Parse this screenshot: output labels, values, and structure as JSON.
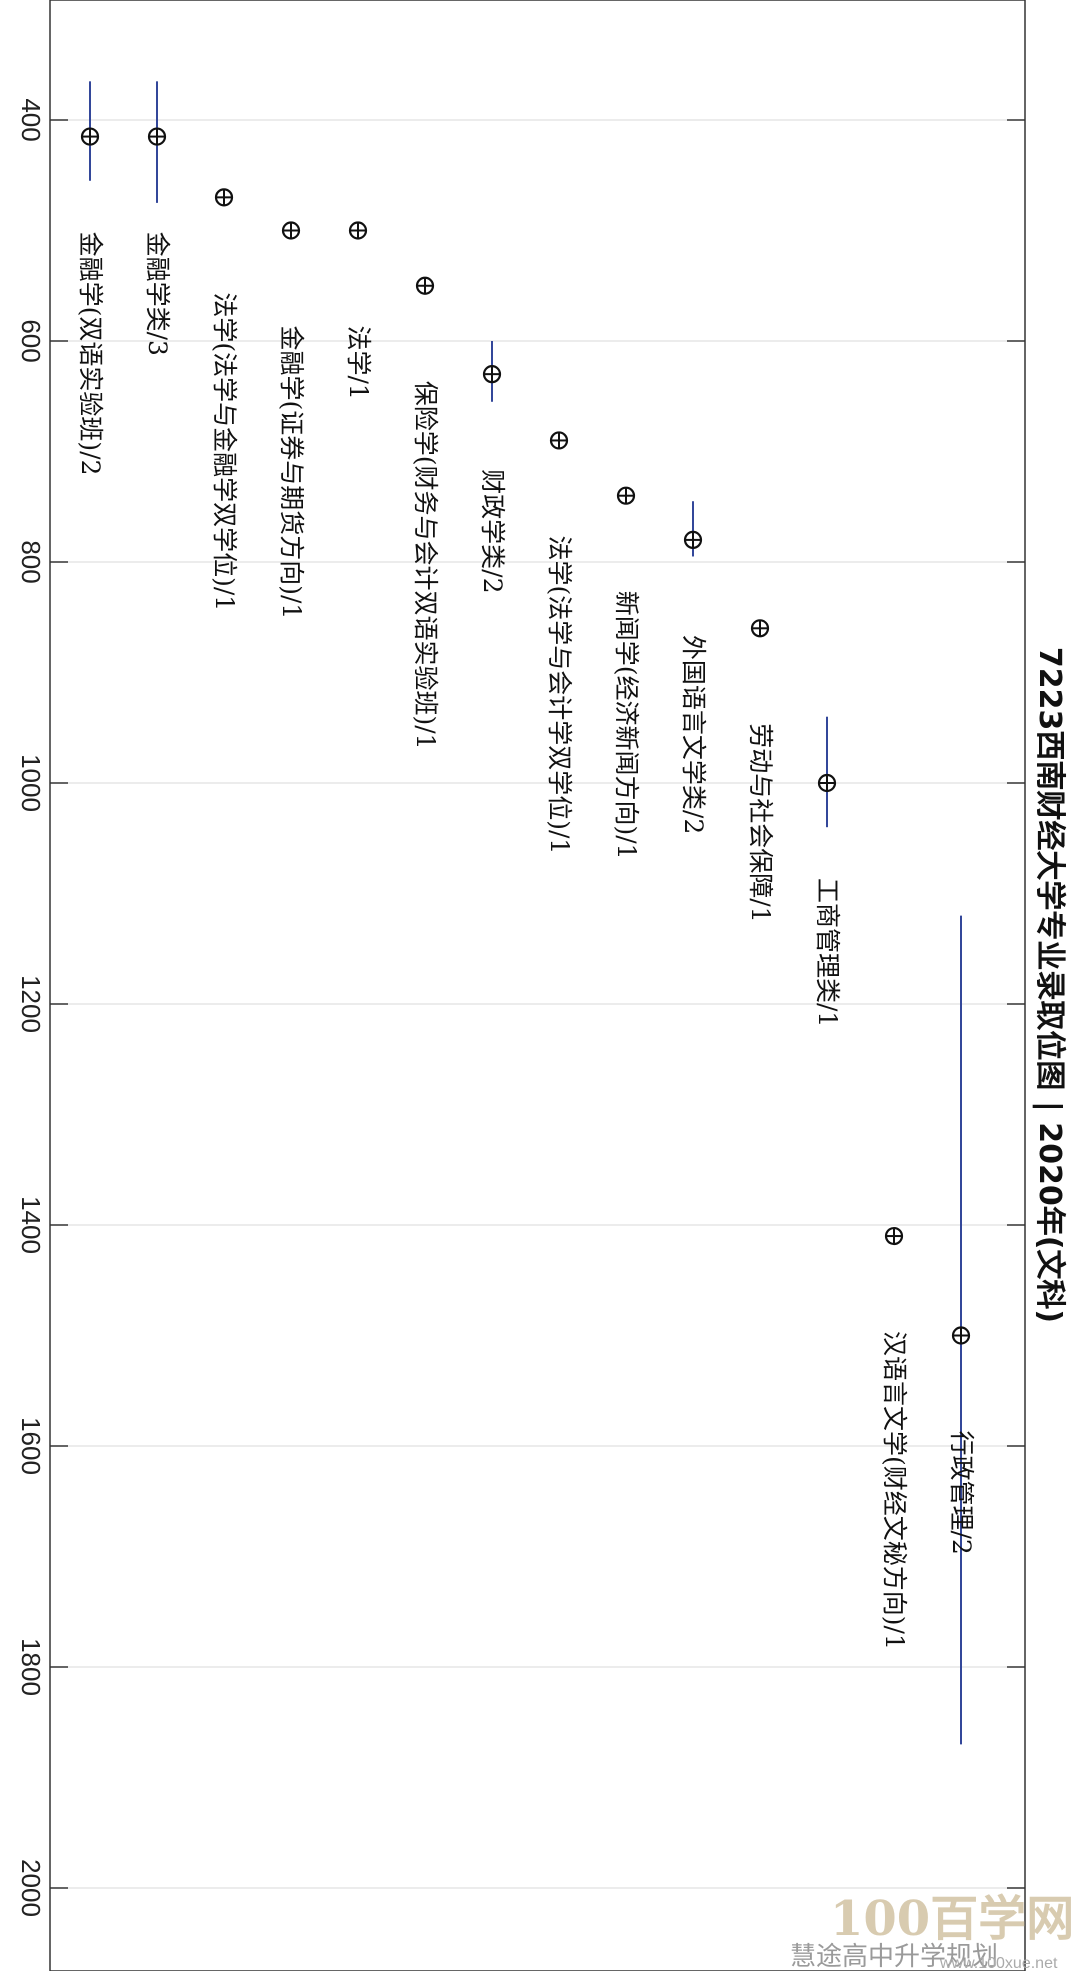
{
  "chart_data": {
    "type": "scatter",
    "title": "7223西南财经大学专业录取位图 | 2020年(文科)",
    "ylim": [
      300,
      2040
    ],
    "yticks": [
      400,
      600,
      800,
      1000,
      1200,
      1400,
      1600,
      1800,
      2000
    ],
    "grid": true,
    "points": [
      {
        "label": "金融学(双语实验班)/2",
        "value": 415,
        "min": 365,
        "max": 455
      },
      {
        "label": "金融学类/3",
        "value": 415,
        "min": 365,
        "max": 475
      },
      {
        "label": "法学(法学与金融学双学位)/1",
        "value": 470
      },
      {
        "label": "金融学(证券与期货方向)/1",
        "value": 500
      },
      {
        "label": "法学/1",
        "value": 500
      },
      {
        "label": "保险学(财务与会计双语实验班)/1",
        "value": 550
      },
      {
        "label": "财政学类/2",
        "value": 630,
        "min": 600,
        "max": 655
      },
      {
        "label": "法学(法学与会计学双学位)/1",
        "value": 690
      },
      {
        "label": "新闻学(经济新闻方向)/1",
        "value": 740
      },
      {
        "label": "外国语言文学类/2",
        "value": 780,
        "min": 745,
        "max": 795
      },
      {
        "label": "劳动与社会保障/1",
        "value": 860
      },
      {
        "label": "工商管理类/1",
        "value": 1000,
        "min": 940,
        "max": 1040
      },
      {
        "label": "汉语言文学(财经文秘方向)/1",
        "value": 1410
      },
      {
        "label": "行政管理/2",
        "value": 1500,
        "min": 1120,
        "max": 1870
      }
    ]
  },
  "watermark": {
    "brand_big": "100百学网",
    "brand_small": "慧途高中升学规划",
    "url": "www.100xue.net"
  }
}
